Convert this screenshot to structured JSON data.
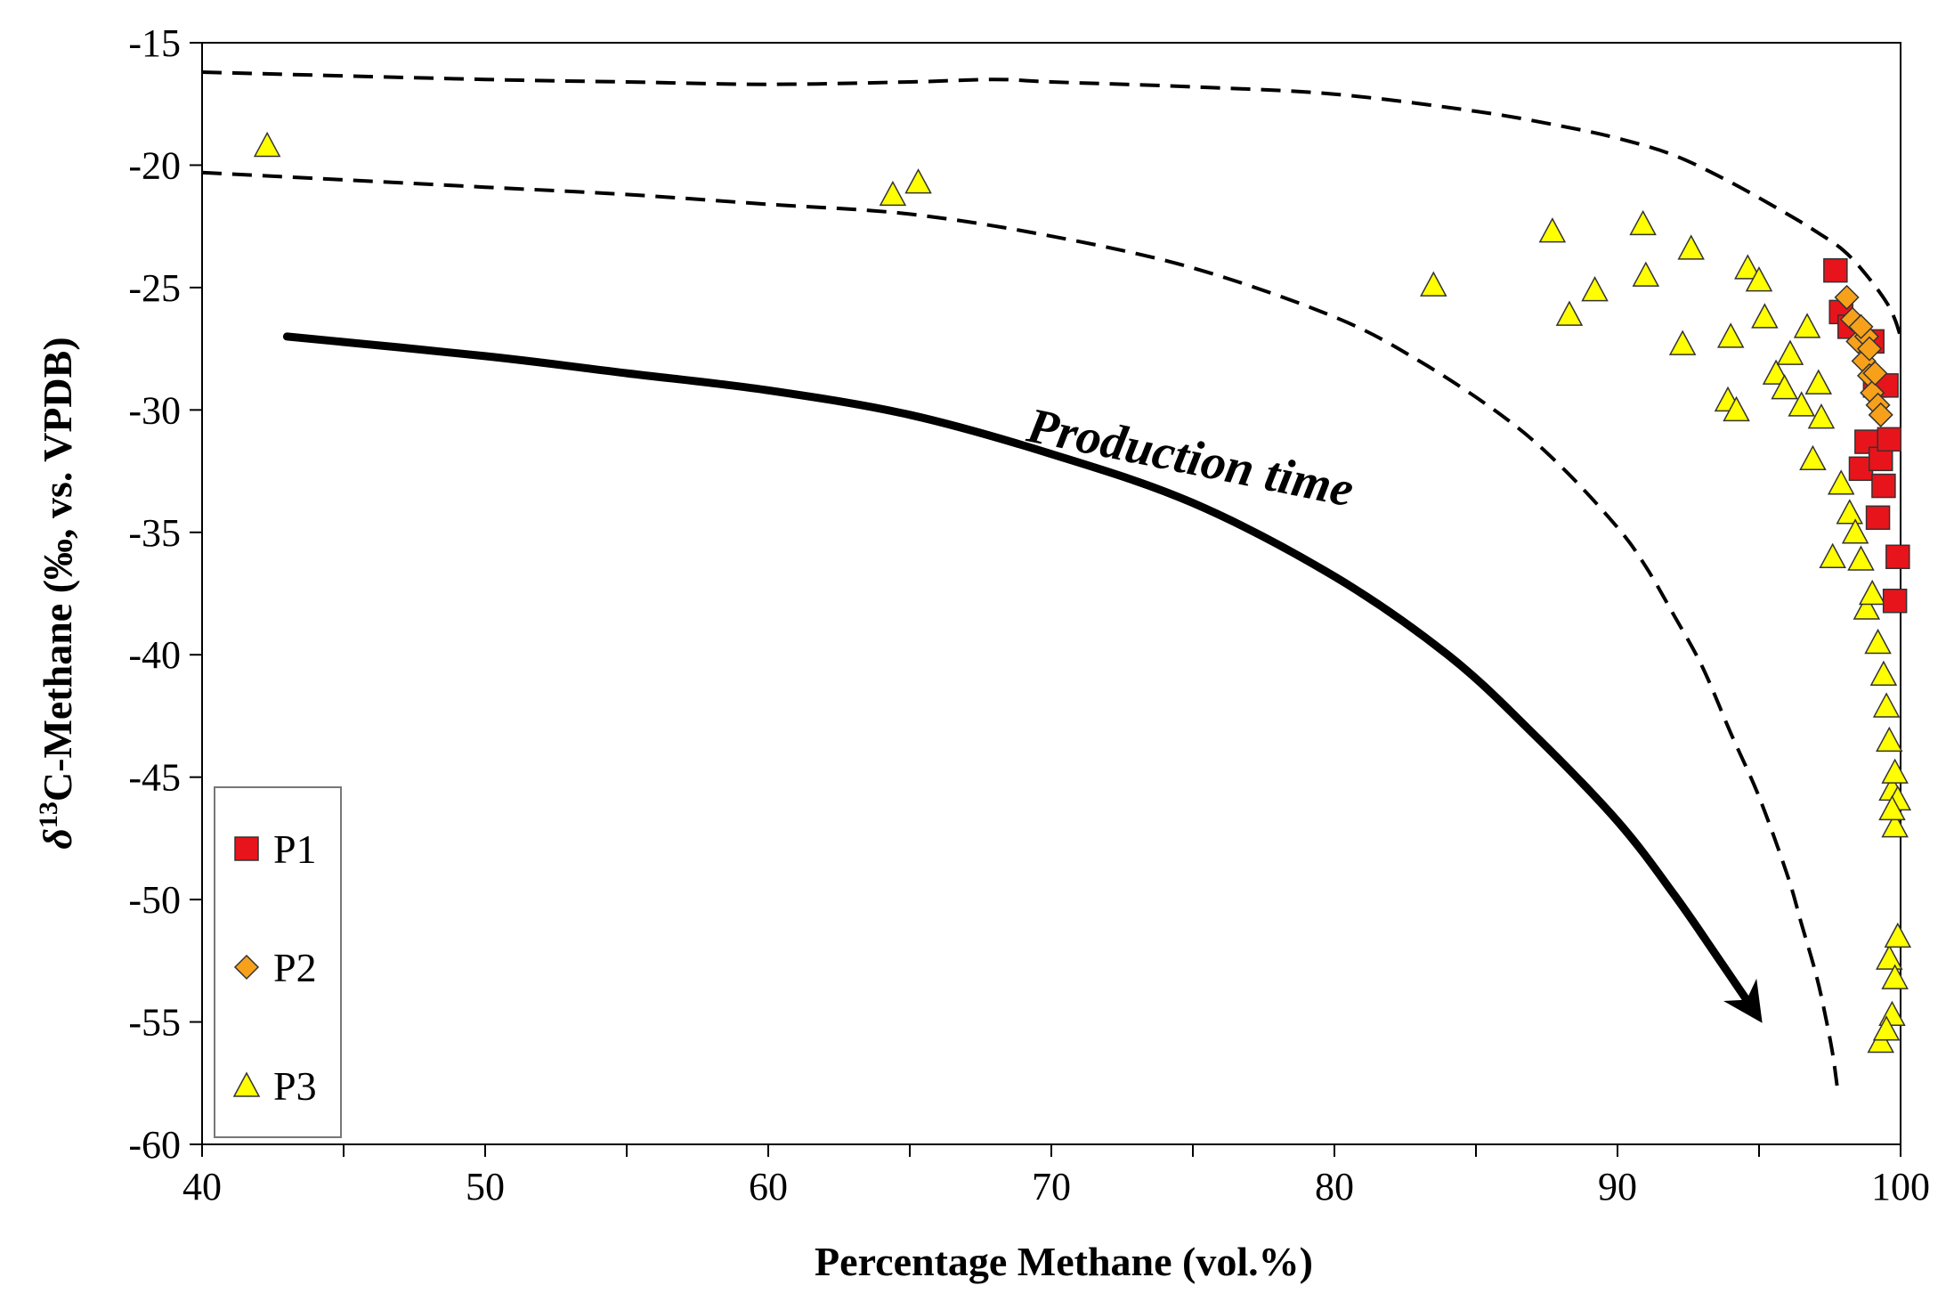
{
  "chart_data": {
    "type": "scatter",
    "title": "",
    "xlabel": "Percentage Methane (vol.%)",
    "ylabel_parts": {
      "delta": "δ",
      "sup": "13",
      "rest": "C-Methane (‰, vs. VPDB)"
    },
    "xlim": [
      40,
      100
    ],
    "ylim": [
      -60,
      -15
    ],
    "xticks": [
      40,
      50,
      60,
      70,
      80,
      90,
      100
    ],
    "yticks": [
      -60,
      -55,
      -50,
      -45,
      -40,
      -35,
      -30,
      -25,
      -20,
      -15
    ],
    "grid": false,
    "legend_position": "bottom-left",
    "colors": {
      "P1": "#e8141b",
      "P2": "#f7a11a",
      "P3": "#ffff00",
      "edge": "#333333"
    },
    "series": [
      {
        "name": "P1",
        "marker": "square",
        "x": [
          97.7,
          97.9,
          98.2,
          98.6,
          98.8,
          99.0,
          99.1,
          99.2,
          99.3,
          99.4,
          99.5,
          99.6,
          99.8,
          99.9
        ],
        "y": [
          -24.3,
          -26.0,
          -26.6,
          -32.4,
          -31.3,
          -27.2,
          -29.0,
          -34.4,
          -32.0,
          -33.1,
          -29.0,
          -31.2,
          -37.8,
          -36.0
        ]
      },
      {
        "name": "P2",
        "marker": "diamond",
        "x": [
          98.1,
          98.3,
          98.5,
          98.7,
          98.8,
          98.9,
          99.0,
          99.1,
          99.2,
          99.3,
          98.6,
          98.9
        ],
        "y": [
          -25.4,
          -26.3,
          -27.2,
          -28.0,
          -27.0,
          -28.6,
          -29.3,
          -28.5,
          -29.8,
          -30.2,
          -26.6,
          -27.5
        ]
      },
      {
        "name": "P3",
        "marker": "triangle",
        "x": [
          42.3,
          64.4,
          65.3,
          83.5,
          87.7,
          88.3,
          89.2,
          90.9,
          91.0,
          92.3,
          92.6,
          93.9,
          94.0,
          94.2,
          94.6,
          95.0,
          95.2,
          95.6,
          95.9,
          96.1,
          96.5,
          96.7,
          96.9,
          97.1,
          97.2,
          97.6,
          97.9,
          98.2,
          98.4,
          98.6,
          98.8,
          99.0,
          99.2,
          99.4,
          99.5,
          99.6,
          99.7,
          99.8,
          99.9,
          99.3,
          99.6,
          99.8,
          99.7,
          99.9,
          99.5,
          99.7,
          99.8
        ],
        "y": [
          -19.2,
          -21.2,
          -20.7,
          -24.9,
          -22.7,
          -26.1,
          -25.1,
          -22.4,
          -24.5,
          -27.3,
          -23.4,
          -29.6,
          -27.0,
          -30.0,
          -24.2,
          -24.7,
          -26.2,
          -28.5,
          -29.1,
          -27.7,
          -29.8,
          -26.6,
          -32.0,
          -28.9,
          -30.3,
          -36.0,
          -33.0,
          -34.2,
          -35.0,
          -36.1,
          -38.1,
          -37.5,
          -39.5,
          -40.8,
          -42.1,
          -43.5,
          -45.5,
          -47.0,
          -45.9,
          -55.8,
          -52.4,
          -53.2,
          -54.7,
          -51.5,
          -55.3,
          -46.3,
          -44.8
        ]
      }
    ],
    "curves": [
      {
        "name": "upper-envelope",
        "style": "dashed",
        "x": [
          40,
          50,
          55,
          60,
          65,
          68,
          70,
          75,
          80,
          85,
          88,
          90,
          92,
          94,
          96,
          97,
          98,
          98.8,
          99.5,
          99.8,
          100
        ],
        "y": [
          -16.2,
          -16.5,
          -16.6,
          -16.7,
          -16.6,
          -16.5,
          -16.6,
          -16.8,
          -17.1,
          -17.8,
          -18.4,
          -18.9,
          -19.6,
          -20.7,
          -22.0,
          -22.7,
          -23.5,
          -24.5,
          -25.6,
          -26.3,
          -27.0
        ]
      },
      {
        "name": "lower-envelope",
        "style": "dashed",
        "x": [
          40,
          45,
          50,
          55,
          60,
          65,
          70,
          75,
          80,
          83,
          86,
          88,
          90,
          91,
          92,
          93,
          94,
          95,
          96,
          96.5,
          97,
          97.3,
          97.6,
          97.8
        ],
        "y": [
          -20.3,
          -20.6,
          -20.9,
          -21.2,
          -21.6,
          -22.0,
          -22.9,
          -24.2,
          -26.2,
          -28.0,
          -30.3,
          -32.3,
          -34.8,
          -36.4,
          -38.4,
          -40.5,
          -43.2,
          -45.8,
          -49.0,
          -51.0,
          -53.0,
          -54.5,
          -56.3,
          -58.0
        ]
      },
      {
        "name": "production-arrow",
        "style": "solid-arrow",
        "x": [
          43,
          50,
          55,
          60,
          65,
          70,
          75,
          80,
          84,
          87,
          90,
          92,
          93.5,
          94.8
        ],
        "y": [
          -27.0,
          -27.8,
          -28.5,
          -29.2,
          -30.2,
          -31.8,
          -33.8,
          -36.8,
          -40.0,
          -43.2,
          -46.8,
          -49.8,
          -52.3,
          -54.5
        ]
      }
    ],
    "annotations": [
      {
        "text": "Production time",
        "x": 74.8,
        "y": -32.6,
        "rotation": 11.5
      }
    ],
    "legend": [
      "P1",
      "P2",
      "P3"
    ]
  }
}
